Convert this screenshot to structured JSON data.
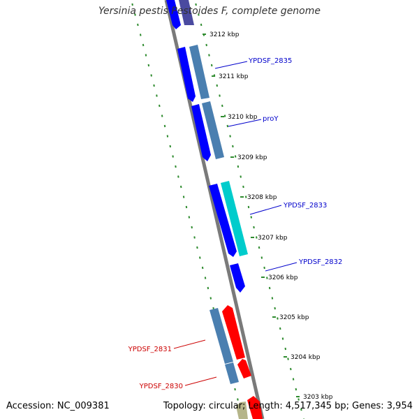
{
  "title": "Yersinia pestis Pestoides F, complete genome",
  "accession": "Accession: NC_009381",
  "topology": "Topology: circular; Length: 4,517,345 bp; Genes: 3,954",
  "colors": {
    "backbone": "#7a7a7a",
    "ticks": "#2e8b2e",
    "cds_blue": "#0000ff",
    "cds_steel": "#4a7fb0",
    "cds_cyan": "#00cccc",
    "cds_red": "#ff0000",
    "cds_navy": "#4a4aa0",
    "cds_olive": "#b5b58a",
    "label_blue": "#0000cc",
    "label_red": "#cc0000"
  },
  "ruler": [
    {
      "label": "3212 kbp"
    },
    {
      "label": "3211 kbp"
    },
    {
      "label": "3210 kbp"
    },
    {
      "label": "3209 kbp"
    },
    {
      "label": "3208 kbp"
    },
    {
      "label": "3207 kbp"
    },
    {
      "label": "3206 kbp"
    },
    {
      "label": "3205 kbp"
    },
    {
      "label": "3204 kbp"
    },
    {
      "label": "3203 kbp"
    }
  ],
  "gene_labels": [
    {
      "name": "YPDSF_2835",
      "color": "blue"
    },
    {
      "name": "proY",
      "color": "blue"
    },
    {
      "name": "YPDSF_2833",
      "color": "blue"
    },
    {
      "name": "YPDSF_2832",
      "color": "blue"
    },
    {
      "name": "YPDSF_2831",
      "color": "red"
    },
    {
      "name": "YPDSF_2830",
      "color": "red"
    }
  ]
}
